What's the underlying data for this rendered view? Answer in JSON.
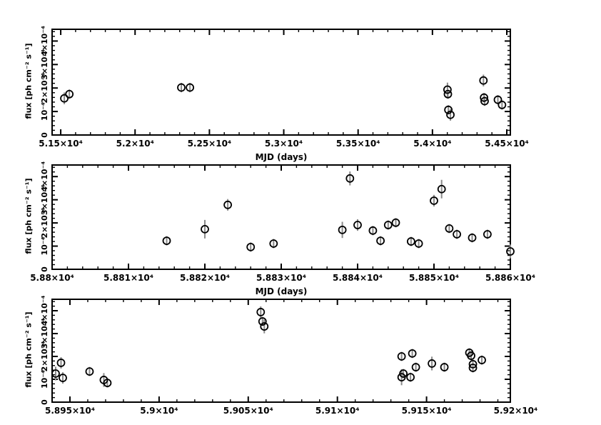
{
  "figure": {
    "background": "#ffffff",
    "axis_color": "#000000",
    "marker_edge_color": "#000000",
    "error_bar_color": "#8a8a8a",
    "y_unit": "×10⁻⁴ ph cm⁻² s⁻¹"
  },
  "chart_data": [
    {
      "type": "scatter",
      "panel": "top",
      "xlabel": "MJD (days)",
      "ylabel": "flux [ph cm⁻² s⁻¹]",
      "xlim": [
        51442,
        54524
      ],
      "ylim": [
        0,
        4.5
      ],
      "x_minor_step": 100,
      "y_minor_step": 0.2,
      "grid": false,
      "legend": "none",
      "xticks": [
        {
          "v": 51500,
          "label": "5.15×10⁴"
        },
        {
          "v": 52000,
          "label": "5.2×10⁴"
        },
        {
          "v": 52500,
          "label": "5.25×10⁴"
        },
        {
          "v": 53000,
          "label": "5.3×10⁴"
        },
        {
          "v": 53500,
          "label": "5.35×10⁴"
        },
        {
          "v": 54000,
          "label": "5.4×10⁴"
        },
        {
          "v": 54500,
          "label": "5.45×10⁴"
        }
      ],
      "yticks": [
        {
          "v": 0,
          "label": "0"
        },
        {
          "v": 1,
          "label": "10⁻⁴"
        },
        {
          "v": 2,
          "label": "2×10⁻⁴"
        },
        {
          "v": 3,
          "label": "3×10⁻⁴"
        },
        {
          "v": 4,
          "label": "4×10⁻⁴"
        }
      ],
      "points": [
        {
          "mjd": 51524,
          "flux": 1.56,
          "err": 0.25
        },
        {
          "mjd": 51558,
          "flux": 1.74,
          "err": 0.2
        },
        {
          "mjd": 52311,
          "flux": 2.02,
          "err": 0.2
        },
        {
          "mjd": 52369,
          "flux": 2.02,
          "err": 0.2
        },
        {
          "mjd": 54101,
          "flux": 1.93,
          "err": 0.3
        },
        {
          "mjd": 54104,
          "flux": 1.74,
          "err": 0.2
        },
        {
          "mjd": 54107,
          "flux": 1.07,
          "err": 0.2
        },
        {
          "mjd": 54121,
          "flux": 0.86,
          "err": 0.25
        },
        {
          "mjd": 54343,
          "flux": 2.32,
          "err": 0.25
        },
        {
          "mjd": 54347,
          "flux": 1.59,
          "err": 0.2
        },
        {
          "mjd": 54351,
          "flux": 1.44,
          "err": 0.2
        },
        {
          "mjd": 54440,
          "flux": 1.5,
          "err": 0.2
        },
        {
          "mjd": 54468,
          "flux": 1.28,
          "err": 0.2
        }
      ]
    },
    {
      "type": "scatter",
      "panel": "middle",
      "xlabel": "MJD (days)",
      "ylabel": "flux [ph cm⁻² s⁻¹]",
      "xlim": [
        58800,
        58860
      ],
      "ylim": [
        0,
        4.5
      ],
      "x_minor_step": 2,
      "y_minor_step": 0.2,
      "grid": false,
      "legend": "none",
      "xticks": [
        {
          "v": 58800,
          "label": "5.88×10⁴"
        },
        {
          "v": 58810,
          "label": "5.881×10⁴"
        },
        {
          "v": 58820,
          "label": "5.882×10⁴"
        },
        {
          "v": 58830,
          "label": "5.883×10⁴"
        },
        {
          "v": 58840,
          "label": "5.884×10⁴"
        },
        {
          "v": 58850,
          "label": "5.885×10⁴"
        },
        {
          "v": 58860,
          "label": "5.886×10⁴"
        }
      ],
      "yticks": [
        {
          "v": 0,
          "label": "0"
        },
        {
          "v": 1,
          "label": "10⁻⁴"
        },
        {
          "v": 2,
          "label": "2×10⁻⁴"
        },
        {
          "v": 3,
          "label": "3×10⁻⁴"
        },
        {
          "v": 4,
          "label": "4×10⁻⁴"
        }
      ],
      "points": [
        {
          "mjd": 58815,
          "flux": 1.23,
          "err": 0.2
        },
        {
          "mjd": 58820,
          "flux": 1.73,
          "err": 0.4
        },
        {
          "mjd": 58823,
          "flux": 2.78,
          "err": 0.25
        },
        {
          "mjd": 58826,
          "flux": 0.96,
          "err": 0.2
        },
        {
          "mjd": 58829,
          "flux": 1.11,
          "err": 0.2
        },
        {
          "mjd": 58838,
          "flux": 1.7,
          "err": 0.35
        },
        {
          "mjd": 58839,
          "flux": 3.92,
          "err": 0.3
        },
        {
          "mjd": 58840,
          "flux": 1.91,
          "err": 0.25
        },
        {
          "mjd": 58842,
          "flux": 1.67,
          "err": 0.2
        },
        {
          "mjd": 58843,
          "flux": 1.23,
          "err": 0.2
        },
        {
          "mjd": 58844,
          "flux": 1.91,
          "err": 0.2
        },
        {
          "mjd": 58845,
          "flux": 2.01,
          "err": 0.2
        },
        {
          "mjd": 58847,
          "flux": 1.2,
          "err": 0.2
        },
        {
          "mjd": 58848,
          "flux": 1.11,
          "err": 0.2
        },
        {
          "mjd": 58850,
          "flux": 2.96,
          "err": 0.25
        },
        {
          "mjd": 58851,
          "flux": 3.46,
          "err": 0.4
        },
        {
          "mjd": 58852,
          "flux": 1.76,
          "err": 0.2
        },
        {
          "mjd": 58853,
          "flux": 1.51,
          "err": 0.2
        },
        {
          "mjd": 58855,
          "flux": 1.36,
          "err": 0.2
        },
        {
          "mjd": 58857,
          "flux": 1.51,
          "err": 0.2
        },
        {
          "mjd": 58860,
          "flux": 0.77,
          "err": 0.3
        }
      ]
    },
    {
      "type": "scatter",
      "panel": "bottom",
      "xlabel": "",
      "ylabel": "flux [ph cm⁻² s⁻¹]",
      "xlim": [
        58940,
        59197
      ],
      "ylim": [
        0,
        4.5
      ],
      "x_minor_step": 10,
      "y_minor_step": 0.2,
      "grid": false,
      "legend": "none",
      "xticks": [
        {
          "v": 58950,
          "label": "5.895×10⁴"
        },
        {
          "v": 59000,
          "label": "5.9×10⁴"
        },
        {
          "v": 59050,
          "label": "5.905×10⁴"
        },
        {
          "v": 59100,
          "label": "5.91×10⁴"
        },
        {
          "v": 59150,
          "label": "5.915×10⁴"
        },
        {
          "v": 59200,
          "label": "5.92×10⁴"
        }
      ],
      "yticks": [
        {
          "v": 0,
          "label": "0"
        },
        {
          "v": 1,
          "label": "10⁻⁴"
        },
        {
          "v": 2,
          "label": "2×10⁻⁴"
        },
        {
          "v": 3,
          "label": "3×10⁻⁴"
        },
        {
          "v": 4,
          "label": "4×10⁻⁴"
        }
      ],
      "points": [
        {
          "mjd": 58942,
          "flux": 1.25,
          "err": 0.3
        },
        {
          "mjd": 58945,
          "flux": 1.72,
          "err": 0.25
        },
        {
          "mjd": 58946,
          "flux": 1.06,
          "err": 0.25
        },
        {
          "mjd": 58961,
          "flux": 1.34,
          "err": 0.2
        },
        {
          "mjd": 58969,
          "flux": 0.97,
          "err": 0.3
        },
        {
          "mjd": 58971,
          "flux": 0.84,
          "err": 0.2
        },
        {
          "mjd": 59057,
          "flux": 3.94,
          "err": 0.25
        },
        {
          "mjd": 59058,
          "flux": 3.53,
          "err": 0.2
        },
        {
          "mjd": 59059,
          "flux": 3.31,
          "err": 0.3
        },
        {
          "mjd": 59136,
          "flux": 2.0,
          "err": 0.2
        },
        {
          "mjd": 59136,
          "flux": 1.09,
          "err": 0.35
        },
        {
          "mjd": 59137,
          "flux": 1.25,
          "err": 0.2
        },
        {
          "mjd": 59141,
          "flux": 1.09,
          "err": 0.2
        },
        {
          "mjd": 59142,
          "flux": 2.13,
          "err": 0.2
        },
        {
          "mjd": 59144,
          "flux": 1.53,
          "err": 0.2
        },
        {
          "mjd": 59153,
          "flux": 1.69,
          "err": 0.3
        },
        {
          "mjd": 59160,
          "flux": 1.53,
          "err": 0.2
        },
        {
          "mjd": 59174,
          "flux": 2.16,
          "err": 0.2
        },
        {
          "mjd": 59175,
          "flux": 2.03,
          "err": 0.2
        },
        {
          "mjd": 59176,
          "flux": 1.66,
          "err": 0.2
        },
        {
          "mjd": 59176,
          "flux": 1.5,
          "err": 0.2
        },
        {
          "mjd": 59181,
          "flux": 1.84,
          "err": 0.2
        }
      ]
    }
  ]
}
